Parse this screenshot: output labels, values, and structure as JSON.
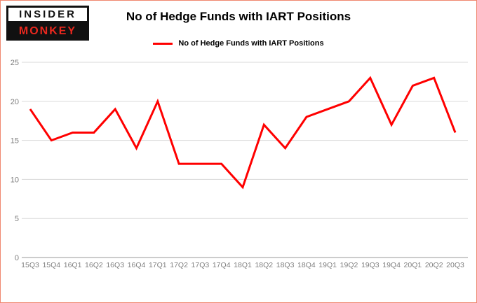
{
  "brand": {
    "line1": "INSIDER",
    "line2": "MONKEY"
  },
  "header": {
    "title": "No of Hedge Funds with IART Positions"
  },
  "legend": {
    "label": "No of Hedge Funds with IART Positions"
  },
  "colors": {
    "brand_red": "#e8281e",
    "line_red": "#ff0000",
    "frame_border": "#f0876f",
    "tick_gray": "#7f7f7f",
    "grid_gray": "#d9d9d9"
  },
  "chart_data": {
    "type": "line",
    "title": "No of Hedge Funds with IART Positions",
    "categories": [
      "15Q3",
      "15Q4",
      "16Q1",
      "16Q2",
      "16Q3",
      "16Q4",
      "17Q1",
      "17Q2",
      "17Q3",
      "17Q4",
      "18Q1",
      "18Q2",
      "18Q3",
      "18Q4",
      "19Q1",
      "19Q2",
      "19Q3",
      "19Q4",
      "20Q1",
      "20Q2",
      "20Q3"
    ],
    "values": [
      19,
      15,
      16,
      16,
      19,
      14,
      20,
      12,
      12,
      12,
      9,
      17,
      14,
      18,
      19,
      20,
      23,
      17,
      22,
      23,
      16
    ],
    "xlabel": "",
    "ylabel": "",
    "ylim": [
      0,
      25
    ],
    "yticks": [
      0,
      5,
      10,
      15,
      20,
      25
    ],
    "grid": true,
    "legend_position": "top",
    "line_color": "#ff0000",
    "line_width": 3
  }
}
